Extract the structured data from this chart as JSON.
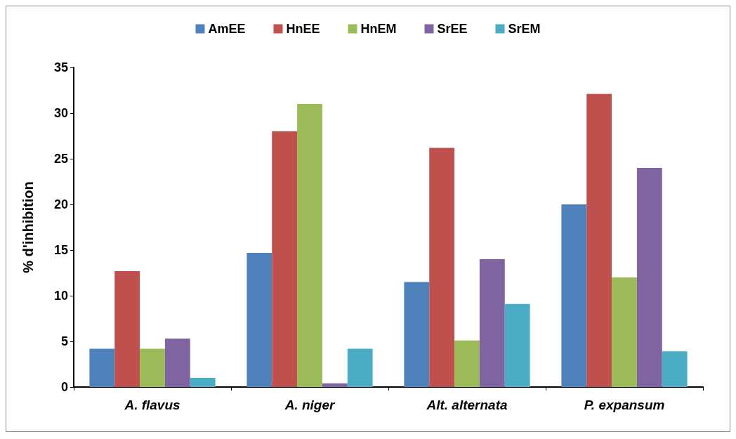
{
  "chart_data": {
    "type": "bar",
    "ylabel": "% d'inhibition",
    "categories": [
      "A. flavus",
      "A. niger",
      "Alt. alternata",
      "P. expansum"
    ],
    "series": [
      {
        "name": "AmEE",
        "color": "#4f81bd",
        "values": [
          4.2,
          14.7,
          11.5,
          20
        ]
      },
      {
        "name": "HnEE",
        "color": "#c0504d",
        "values": [
          12.7,
          28,
          26.2,
          32.1
        ]
      },
      {
        "name": "HnEM",
        "color": "#9bbb59",
        "values": [
          4.2,
          31,
          5.1,
          12
        ]
      },
      {
        "name": "SrEE",
        "color": "#8064a2",
        "values": [
          5.3,
          0.4,
          14,
          24
        ]
      },
      {
        "name": "SrEM",
        "color": "#4bacc6",
        "values": [
          1,
          4.2,
          9.1,
          3.9
        ]
      }
    ],
    "ylim": [
      0,
      35
    ],
    "yticks": [
      0,
      5,
      10,
      15,
      20,
      25,
      30,
      35
    ],
    "grid": false,
    "legend": "top"
  }
}
